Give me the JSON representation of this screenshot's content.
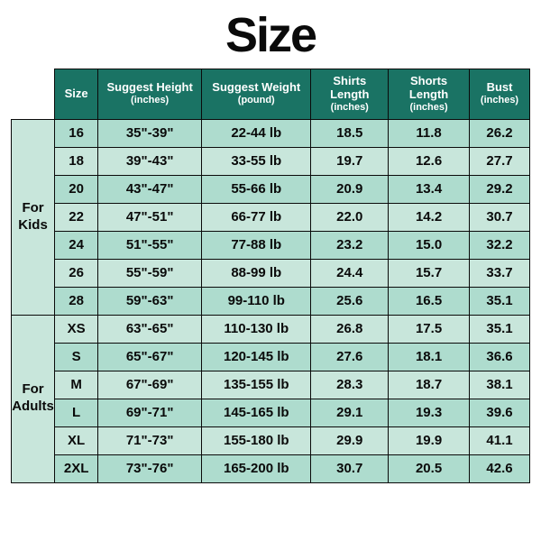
{
  "title": "Size",
  "title_fontsize": 54,
  "colors": {
    "header_bg": "#1a7364",
    "row_alt_a": "#aedcce",
    "row_alt_b": "#c8e6db",
    "text": "#0a0a0a",
    "header_text": "#ffffff",
    "border": "#0a0a0a",
    "page_bg": "#ffffff"
  },
  "columns": [
    {
      "label": "Size",
      "sub": ""
    },
    {
      "label": "Suggest Height",
      "sub": "(inches)"
    },
    {
      "label": "Suggest Weight",
      "sub": "(pound)"
    },
    {
      "label": "Shirts Length",
      "sub": "(inches)"
    },
    {
      "label": "Shorts Length",
      "sub": "(inches)"
    },
    {
      "label": "Bust",
      "sub": "(inches)"
    }
  ],
  "groups": [
    {
      "label": "For\nKids",
      "rows": [
        [
          "16",
          "35\"-39\"",
          "22-44 lb",
          "18.5",
          "11.8",
          "26.2"
        ],
        [
          "18",
          "39\"-43\"",
          "33-55 lb",
          "19.7",
          "12.6",
          "27.7"
        ],
        [
          "20",
          "43\"-47\"",
          "55-66 lb",
          "20.9",
          "13.4",
          "29.2"
        ],
        [
          "22",
          "47\"-51\"",
          "66-77 lb",
          "22.0",
          "14.2",
          "30.7"
        ],
        [
          "24",
          "51\"-55\"",
          "77-88 lb",
          "23.2",
          "15.0",
          "32.2"
        ],
        [
          "26",
          "55\"-59\"",
          "88-99 lb",
          "24.4",
          "15.7",
          "33.7"
        ],
        [
          "28",
          "59\"-63\"",
          "99-110 lb",
          "25.6",
          "16.5",
          "35.1"
        ]
      ]
    },
    {
      "label": "For\nAdults",
      "rows": [
        [
          "XS",
          "63\"-65\"",
          "110-130 lb",
          "26.8",
          "17.5",
          "35.1"
        ],
        [
          "S",
          "65\"-67\"",
          "120-145 lb",
          "27.6",
          "18.1",
          "36.6"
        ],
        [
          "M",
          "67\"-69\"",
          "135-155 lb",
          "28.3",
          "18.7",
          "38.1"
        ],
        [
          "L",
          "69\"-71\"",
          "145-165 lb",
          "29.1",
          "19.3",
          "39.6"
        ],
        [
          "XL",
          "71\"-73\"",
          "155-180 lb",
          "29.9",
          "19.9",
          "41.1"
        ],
        [
          "2XL",
          "73\"-76\"",
          "165-200 lb",
          "30.7",
          "20.5",
          "42.6"
        ]
      ]
    }
  ]
}
